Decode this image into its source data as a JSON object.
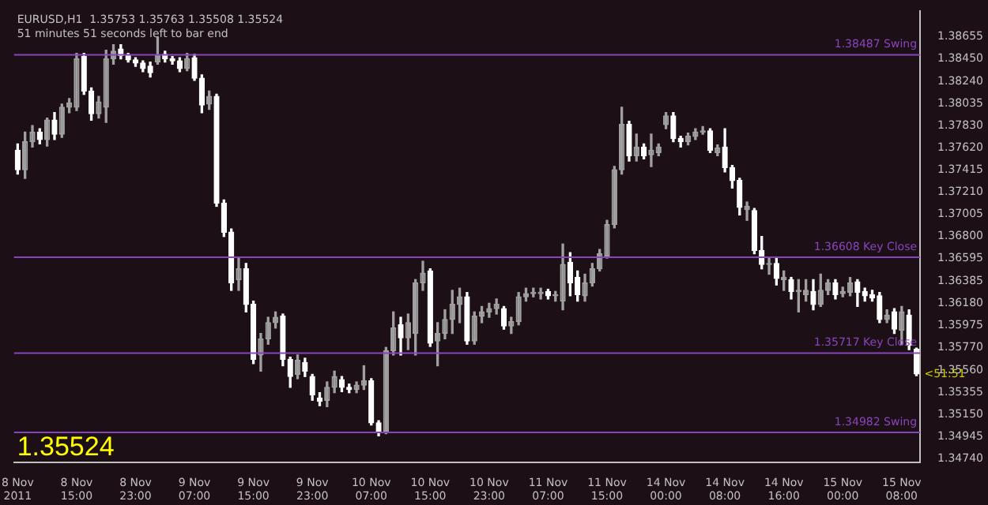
{
  "chart_data": {
    "type": "candlestick",
    "title": "EURUSD,H1  1.35753 1.35763 1.35508 1.35524",
    "subtitle": "51 minutes 51 seconds left to bar end",
    "categories": [
      "8 Nov 2011",
      null,
      null,
      null,
      null,
      null,
      null,
      null,
      "8 Nov 15:00",
      null,
      null,
      null,
      null,
      null,
      null,
      null,
      "8 Nov 23:00",
      null,
      null,
      null,
      null,
      null,
      null,
      null,
      "9 Nov 07:00",
      null,
      null,
      null,
      null,
      null,
      null,
      null,
      "9 Nov 15:00",
      null,
      null,
      null,
      null,
      null,
      null,
      null,
      "9 Nov 23:00",
      null,
      null,
      null,
      null,
      null,
      null,
      null,
      "10 Nov 07:00",
      null,
      null,
      null,
      null,
      null,
      null,
      null,
      "10 Nov 15:00",
      null,
      null,
      null,
      null,
      null,
      null,
      null,
      "10 Nov 23:00",
      null,
      null,
      null,
      null,
      null,
      null,
      null,
      "11 Nov 07:00",
      null,
      null,
      null,
      null,
      null,
      null,
      null,
      "11 Nov 15:00",
      null,
      null,
      null,
      null,
      null,
      null,
      null,
      "14 Nov 00:00",
      null,
      null,
      null,
      null,
      null,
      null,
      null,
      "14 Nov 08:00",
      null,
      null,
      null,
      null,
      null,
      null,
      null,
      "14 Nov 16:00",
      null,
      null,
      null,
      null,
      null,
      null,
      null,
      "15 Nov 00:00",
      null,
      null,
      null,
      null,
      null,
      null,
      null,
      "15 Nov 08:00",
      null,
      null
    ],
    "ohlc": [
      [
        1.376,
        1.3766,
        1.3738,
        1.3742
      ],
      [
        1.3742,
        1.3777,
        1.3734,
        1.3768
      ],
      [
        1.3768,
        1.3783,
        1.3763,
        1.3777
      ],
      [
        1.3777,
        1.378,
        1.3766,
        1.377
      ],
      [
        1.377,
        1.379,
        1.3764,
        1.3788
      ],
      [
        1.3788,
        1.3795,
        1.377,
        1.3775
      ],
      [
        1.3775,
        1.3803,
        1.3772,
        1.38
      ],
      [
        1.38,
        1.3808,
        1.3795,
        1.3804
      ],
      [
        1.38,
        1.385,
        1.3797,
        1.3845
      ],
      [
        1.3847,
        1.385,
        1.3812,
        1.3815
      ],
      [
        1.3815,
        1.3818,
        1.3788,
        1.3794
      ],
      [
        1.3794,
        1.381,
        1.379,
        1.3805
      ],
      [
        1.38,
        1.3853,
        1.3786,
        1.3845
      ],
      [
        1.3845,
        1.3858,
        1.384,
        1.3852
      ],
      [
        1.3854,
        1.3858,
        1.3845,
        1.3848
      ],
      [
        1.3848,
        1.385,
        1.3842,
        1.3844
      ],
      [
        1.3844,
        1.3846,
        1.3838,
        1.3841
      ],
      [
        1.3841,
        1.3843,
        1.3833,
        1.3836
      ],
      [
        1.3838,
        1.3842,
        1.3828,
        1.3832
      ],
      [
        1.3842,
        1.3865,
        1.384,
        1.3848
      ],
      [
        1.3849,
        1.3852,
        1.3842,
        1.3845
      ],
      [
        1.3845,
        1.3847,
        1.384,
        1.3843
      ],
      [
        1.3843,
        1.3846,
        1.3833,
        1.3836
      ],
      [
        1.3836,
        1.385,
        1.3834,
        1.3845
      ],
      [
        1.3846,
        1.3849,
        1.3825,
        1.3827
      ],
      [
        1.3827,
        1.383,
        1.3795,
        1.3802
      ],
      [
        1.3803,
        1.3815,
        1.3798,
        1.381
      ],
      [
        1.381,
        1.3812,
        1.3708,
        1.3711
      ],
      [
        1.3711,
        1.3714,
        1.368,
        1.3684
      ],
      [
        1.3684,
        1.3687,
        1.363,
        1.3637
      ],
      [
        1.364,
        1.366,
        1.363,
        1.365
      ],
      [
        1.365,
        1.3655,
        1.361,
        1.3617
      ],
      [
        1.3617,
        1.362,
        1.3562,
        1.3566
      ],
      [
        1.357,
        1.359,
        1.3555,
        1.3585
      ],
      [
        1.3585,
        1.3605,
        1.358,
        1.36
      ],
      [
        1.36,
        1.361,
        1.3595,
        1.3605
      ],
      [
        1.3606,
        1.3608,
        1.356,
        1.3566
      ],
      [
        1.3566,
        1.3568,
        1.354,
        1.355
      ],
      [
        1.3552,
        1.357,
        1.3548,
        1.3565
      ],
      [
        1.3563,
        1.3567,
        1.355,
        1.3555
      ],
      [
        1.355,
        1.3552,
        1.3528,
        1.3533
      ],
      [
        1.353,
        1.3535,
        1.3523,
        1.3527
      ],
      [
        1.3528,
        1.3545,
        1.3522,
        1.354
      ],
      [
        1.354,
        1.3555,
        1.3535,
        1.355
      ],
      [
        1.3547,
        1.355,
        1.3536,
        1.354
      ],
      [
        1.354,
        1.3543,
        1.3535,
        1.3538
      ],
      [
        1.3538,
        1.3545,
        1.3535,
        1.3542
      ],
      [
        1.3542,
        1.356,
        1.3538,
        1.3546
      ],
      [
        1.3546,
        1.3548,
        1.3505,
        1.3507
      ],
      [
        1.3507,
        1.3509,
        1.3495,
        1.3499
      ],
      [
        1.3499,
        1.3577,
        1.3497,
        1.3574
      ],
      [
        1.3574,
        1.361,
        1.357,
        1.3595
      ],
      [
        1.3598,
        1.3605,
        1.357,
        1.3586
      ],
      [
        1.3586,
        1.3608,
        1.3575,
        1.36
      ],
      [
        1.359,
        1.364,
        1.357,
        1.3637
      ],
      [
        1.3637,
        1.3657,
        1.363,
        1.3646
      ],
      [
        1.3648,
        1.365,
        1.3578,
        1.3581
      ],
      [
        1.3583,
        1.36,
        1.356,
        1.359
      ],
      [
        1.359,
        1.3612,
        1.3585,
        1.3603
      ],
      [
        1.3603,
        1.363,
        1.359,
        1.3617
      ],
      [
        1.3617,
        1.3632,
        1.36,
        1.3624
      ],
      [
        1.3624,
        1.3628,
        1.358,
        1.3583
      ],
      [
        1.3583,
        1.361,
        1.358,
        1.3606
      ],
      [
        1.3606,
        1.3615,
        1.36,
        1.361
      ],
      [
        1.361,
        1.3618,
        1.3605,
        1.3613
      ],
      [
        1.3613,
        1.3622,
        1.3608,
        1.3617
      ],
      [
        1.3613,
        1.3615,
        1.3594,
        1.3597
      ],
      [
        1.3597,
        1.3605,
        1.359,
        1.3601
      ],
      [
        1.3601,
        1.3628,
        1.3598,
        1.3624
      ],
      [
        1.3624,
        1.3632,
        1.362,
        1.3627
      ],
      [
        1.3627,
        1.3632,
        1.3624,
        1.3628
      ],
      [
        1.3627,
        1.3632,
        1.3622,
        1.3628
      ],
      [
        1.3629,
        1.3631,
        1.3622,
        1.3625
      ],
      [
        1.3625,
        1.3629,
        1.362,
        1.3626
      ],
      [
        1.362,
        1.3673,
        1.3612,
        1.3654
      ],
      [
        1.3656,
        1.3665,
        1.3625,
        1.3637
      ],
      [
        1.3642,
        1.3648,
        1.362,
        1.3626
      ],
      [
        1.3625,
        1.3645,
        1.362,
        1.3637
      ],
      [
        1.3637,
        1.3655,
        1.3634,
        1.365
      ],
      [
        1.365,
        1.3668,
        1.3648,
        1.3664
      ],
      [
        1.3662,
        1.3695,
        1.366,
        1.3691
      ],
      [
        1.3691,
        1.3745,
        1.3688,
        1.3742
      ],
      [
        1.3742,
        1.38,
        1.3738,
        1.3784
      ],
      [
        1.3784,
        1.3787,
        1.375,
        1.3755
      ],
      [
        1.3755,
        1.3775,
        1.375,
        1.3763
      ],
      [
        1.3763,
        1.3766,
        1.3752,
        1.3755
      ],
      [
        1.3756,
        1.3775,
        1.3745,
        1.376
      ],
      [
        1.3758,
        1.3766,
        1.3755,
        1.3763
      ],
      [
        1.3784,
        1.3795,
        1.378,
        1.3792
      ],
      [
        1.3792,
        1.3795,
        1.3768,
        1.3771
      ],
      [
        1.3771,
        1.3773,
        1.3763,
        1.3768
      ],
      [
        1.3768,
        1.3776,
        1.3765,
        1.3773
      ],
      [
        1.3773,
        1.378,
        1.377,
        1.3777
      ],
      [
        1.3777,
        1.3782,
        1.3775,
        1.3778
      ],
      [
        1.3778,
        1.378,
        1.3758,
        1.376
      ],
      [
        1.3758,
        1.3765,
        1.3755,
        1.3762
      ],
      [
        1.3763,
        1.378,
        1.374,
        1.3744
      ],
      [
        1.3744,
        1.3746,
        1.3725,
        1.3732
      ],
      [
        1.3732,
        1.3734,
        1.37,
        1.3707
      ],
      [
        1.3705,
        1.3712,
        1.3695,
        1.3708
      ],
      [
        1.3704,
        1.3706,
        1.3664,
        1.3667
      ],
      [
        1.3667,
        1.368,
        1.365,
        1.3654
      ],
      [
        1.3654,
        1.366,
        1.3645,
        1.3655
      ],
      [
        1.3655,
        1.366,
        1.3635,
        1.3641
      ],
      [
        1.364,
        1.3648,
        1.363,
        1.3642
      ],
      [
        1.364,
        1.3642,
        1.3622,
        1.3629
      ],
      [
        1.3629,
        1.364,
        1.361,
        1.363
      ],
      [
        1.3626,
        1.364,
        1.362,
        1.363
      ],
      [
        1.3629,
        1.364,
        1.3612,
        1.3617
      ],
      [
        1.3617,
        1.3645,
        1.3615,
        1.363
      ],
      [
        1.363,
        1.364,
        1.3626,
        1.3637
      ],
      [
        1.3637,
        1.364,
        1.3622,
        1.3626
      ],
      [
        1.3627,
        1.3633,
        1.3624,
        1.3629
      ],
      [
        1.3628,
        1.3642,
        1.3625,
        1.3637
      ],
      [
        1.3638,
        1.364,
        1.3615,
        1.3628
      ],
      [
        1.3629,
        1.3632,
        1.362,
        1.3625
      ],
      [
        1.3626,
        1.363,
        1.362,
        1.3623
      ],
      [
        1.3625,
        1.3628,
        1.36,
        1.3603
      ],
      [
        1.3603,
        1.3612,
        1.36,
        1.3607
      ],
      [
        1.361,
        1.3613,
        1.359,
        1.3594
      ],
      [
        1.3593,
        1.3615,
        1.358,
        1.361
      ],
      [
        1.3607,
        1.3612,
        1.3575,
        1.3579
      ],
      [
        1.35753,
        1.35763,
        1.35508,
        1.35524
      ]
    ],
    "ylim": [
      1.347,
      1.3889
    ],
    "yticks": [
      {
        "value": 1.38655,
        "label": "1.38655"
      },
      {
        "value": 1.3845,
        "label": "1.38450"
      },
      {
        "value": 1.3824,
        "label": "1.38240"
      },
      {
        "value": 1.38035,
        "label": "1.38035"
      },
      {
        "value": 1.3783,
        "label": "1.37830"
      },
      {
        "value": 1.3762,
        "label": "1.37620"
      },
      {
        "value": 1.37415,
        "label": "1.37415"
      },
      {
        "value": 1.3721,
        "label": "1.37210"
      },
      {
        "value": 1.37005,
        "label": "1.37005"
      },
      {
        "value": 1.368,
        "label": "1.36800"
      },
      {
        "value": 1.36595,
        "label": "1.36595"
      },
      {
        "value": 1.36385,
        "label": "1.36385"
      },
      {
        "value": 1.3618,
        "label": "1.36180"
      },
      {
        "value": 1.35975,
        "label": "1.35975"
      },
      {
        "value": 1.3577,
        "label": "1.35770"
      },
      {
        "value": 1.3556,
        "label": "1.35560"
      },
      {
        "value": 1.35355,
        "label": "1.35355"
      },
      {
        "value": 1.3515,
        "label": "1.35150"
      },
      {
        "value": 1.34945,
        "label": "1.34945"
      },
      {
        "value": 1.3474,
        "label": "1.34740"
      }
    ],
    "ref_lines": [
      {
        "axis": "y",
        "value": 1.38487,
        "label": "1.38487 Swing",
        "color": "#8844bb"
      },
      {
        "axis": "y",
        "value": 1.36608,
        "label": "1.36608 Key Close",
        "color": "#8844bb"
      },
      {
        "axis": "y",
        "value": 1.35717,
        "label": "1.35717 Key Close",
        "color": "#8844bb"
      },
      {
        "axis": "y",
        "value": 1.34982,
        "label": "1.34982 Swing",
        "color": "#8844bb"
      }
    ],
    "annotations": [
      "1.35524",
      "<51:51"
    ],
    "grid": false,
    "legend": false
  }
}
